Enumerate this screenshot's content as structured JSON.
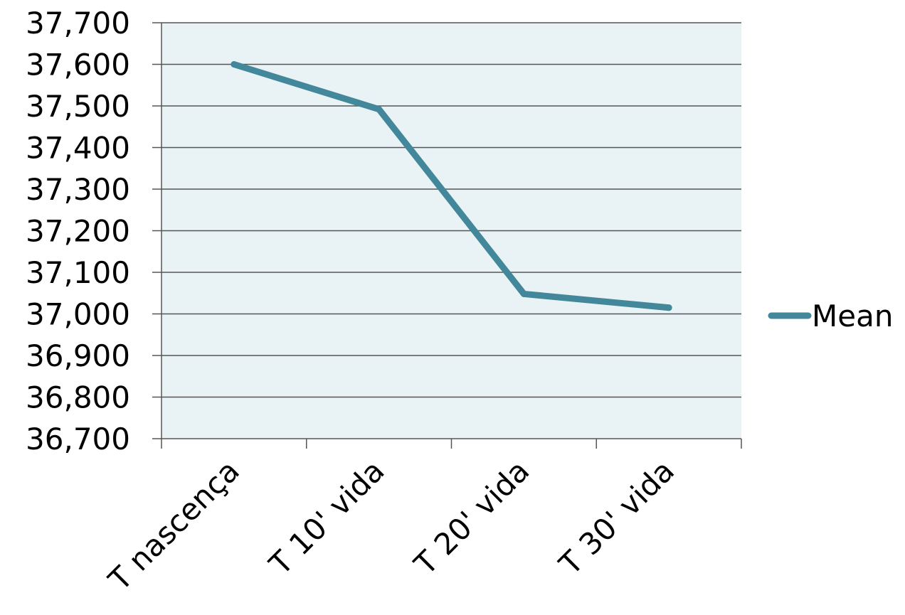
{
  "chart_data": {
    "type": "line",
    "categories": [
      "T nascença",
      "T 10' vida",
      "T 20' vida",
      "T 30' vida"
    ],
    "series": [
      {
        "name": "Mean",
        "values": [
          37.6,
          37.492,
          37.048,
          37.015
        ],
        "color": "#43879b"
      }
    ],
    "ylim": [
      36.7,
      37.7
    ],
    "yticks": [
      36.7,
      36.8,
      36.9,
      37.0,
      37.1,
      37.2,
      37.3,
      37.4,
      37.5,
      37.6,
      37.7
    ],
    "ytick_labels": [
      "36,700",
      "36,800",
      "36,900",
      "37,000",
      "37,100",
      "37,200",
      "37,300",
      "37,400",
      "37,500",
      "37,600",
      "37,700"
    ],
    "grid": true,
    "legend": "right",
    "plot_background": "#e9f3f6"
  }
}
